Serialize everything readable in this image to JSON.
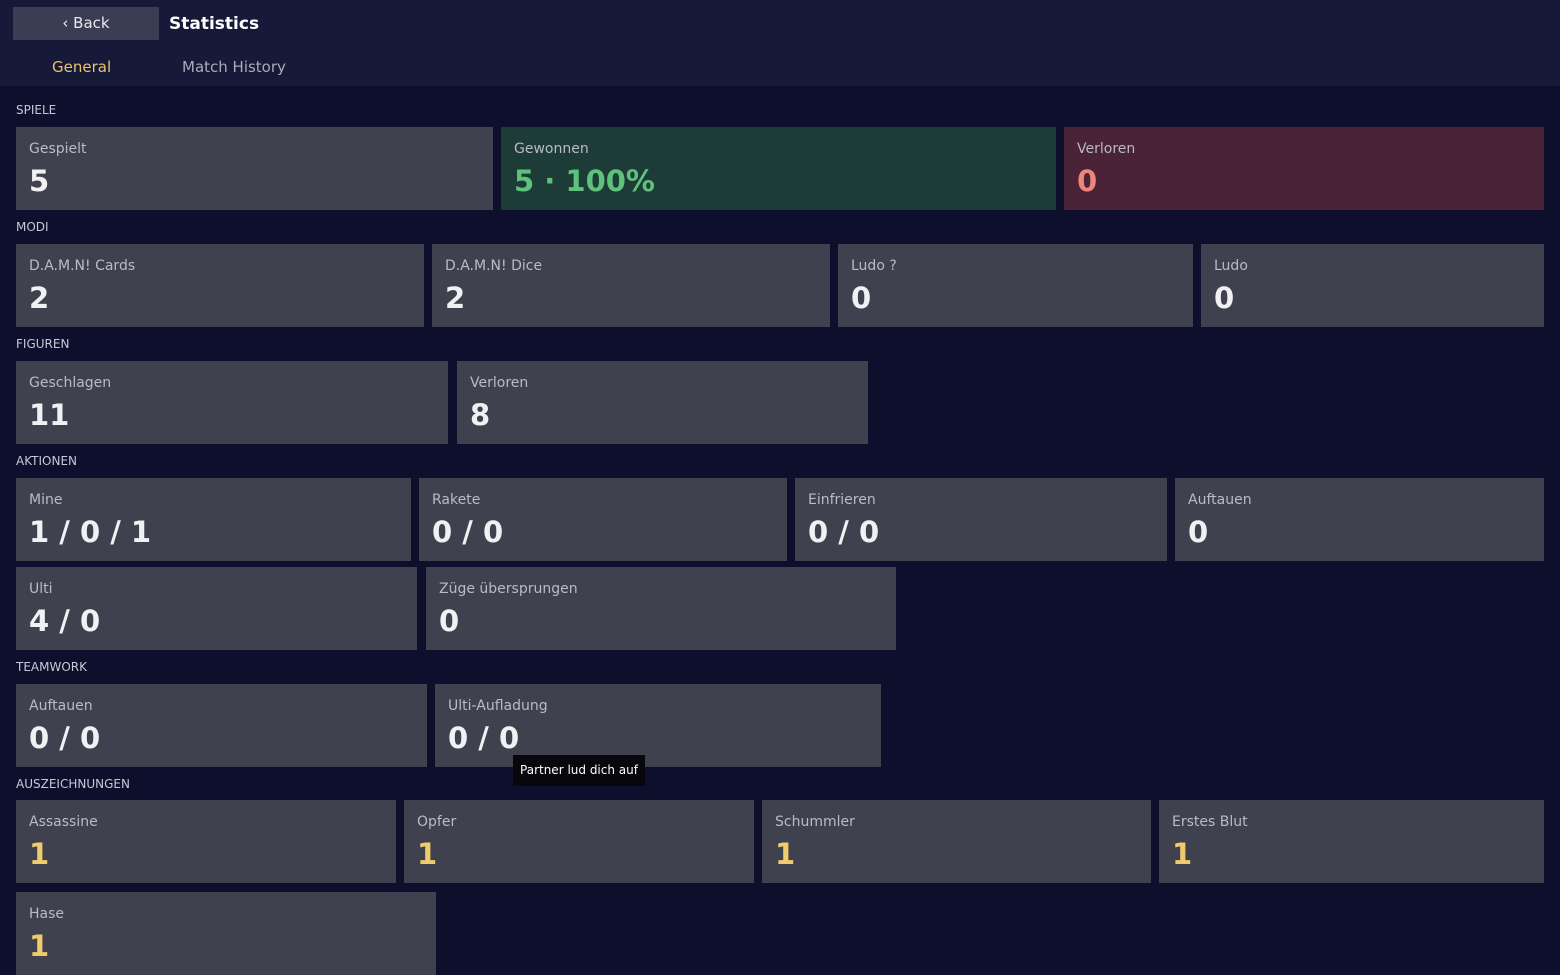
{
  "header": {
    "back": "‹ Back",
    "title": "Statistics"
  },
  "tabs": [
    "General",
    "Match History"
  ],
  "sections": [
    {
      "title": "SPIELE",
      "cards": [
        {
          "label": "Gespielt",
          "value": 5
        },
        {
          "label": "Gewonnen",
          "value": "5 · 100%"
        },
        {
          "label": "Verloren",
          "value": 0
        }
      ]
    },
    {
      "title": "MODI",
      "cards": [
        {
          "label": "D.A.M.N! Cards",
          "value": 2
        },
        {
          "label": "D.A.M.N! Dice",
          "value": 2
        },
        {
          "label": "Ludo ?",
          "value": 0
        },
        {
          "label": "Ludo",
          "value": 0
        }
      ]
    },
    {
      "title": "FIGUREN",
      "cards": [
        {
          "label": "Geschlagen",
          "value": 11
        },
        {
          "label": "Verloren",
          "value": 8
        }
      ]
    },
    {
      "title": "AKTIONEN",
      "cards": [
        {
          "label": "Mine",
          "value": "1 / 0 / 1"
        },
        {
          "label": "Rakete",
          "value": "0 / 0"
        },
        {
          "label": "Einfrieren",
          "value": "0 / 0"
        },
        {
          "label": "Auftauen",
          "value": 0
        },
        {
          "label": "Ulti",
          "value": "4 / 0"
        },
        {
          "label": "Züge übersprungen",
          "value": 0
        }
      ]
    },
    {
      "title": "TEAMWORK",
      "cards": [
        {
          "label": "Auftauen",
          "value": "0 / 0"
        },
        {
          "label": "Ulti-Aufladung",
          "value": "0 / 0"
        }
      ]
    },
    {
      "title": "AUSZEICHNUNGEN",
      "cards": [
        {
          "label": "Assassine",
          "value": 1
        },
        {
          "label": "Opfer",
          "value": 1
        },
        {
          "label": "Schummler",
          "value": 1
        },
        {
          "label": "Erstes Blut",
          "value": 1
        },
        {
          "label": "Hase",
          "value": 1
        }
      ]
    }
  ],
  "tooltip": "Partner lud dich auf"
}
